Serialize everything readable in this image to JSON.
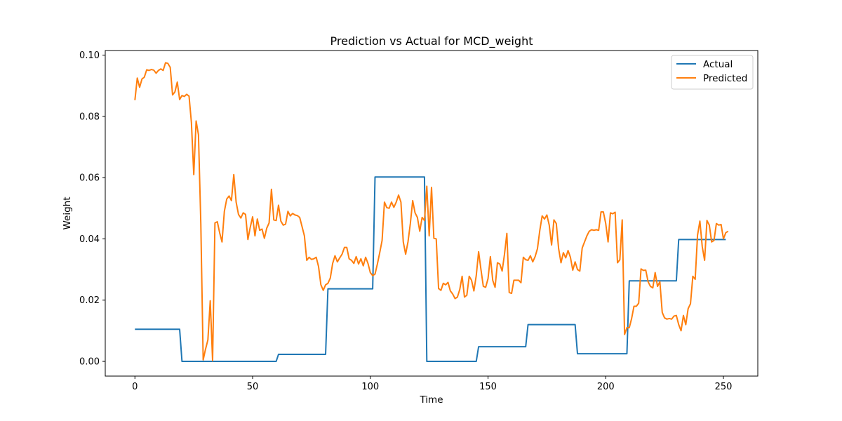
{
  "chart_data": {
    "type": "line",
    "title": "Prediction vs Actual for MCD_weight",
    "xlabel": "Time",
    "ylabel": "Weight",
    "xlim": [
      -12.6,
      264.6
    ],
    "ylim": [
      -0.0048,
      0.1015
    ],
    "xticks": [
      0,
      50,
      100,
      150,
      200,
      250
    ],
    "yticks": [
      0.0,
      0.02,
      0.04,
      0.06,
      0.08,
      0.1
    ],
    "ytick_labels": [
      "0.00",
      "0.02",
      "0.04",
      "0.06",
      "0.08",
      "0.10"
    ],
    "grid": false,
    "legend_position": "top-right",
    "series": [
      {
        "name": "Actual",
        "color": "#1f77b4",
        "step_points": [
          [
            0,
            0.0105
          ],
          [
            19,
            0.0105
          ],
          [
            20,
            0.0
          ],
          [
            60,
            0.0
          ],
          [
            61,
            0.0023
          ],
          [
            81,
            0.0023
          ],
          [
            82,
            0.0237
          ],
          [
            101,
            0.0237
          ],
          [
            102,
            0.0602
          ],
          [
            123,
            0.0602
          ],
          [
            124,
            0.0
          ],
          [
            145,
            0.0
          ],
          [
            146,
            0.0048
          ],
          [
            166,
            0.0048
          ],
          [
            167,
            0.012
          ],
          [
            187,
            0.012
          ],
          [
            188,
            0.0025
          ],
          [
            209,
            0.0025
          ],
          [
            210,
            0.0263
          ],
          [
            230,
            0.0263
          ],
          [
            231,
            0.0398
          ],
          [
            251,
            0.0398
          ]
        ]
      },
      {
        "name": "Predicted",
        "color": "#ff7f0e",
        "points": [
          [
            0,
            0.0853
          ],
          [
            1,
            0.0925
          ],
          [
            2,
            0.0895
          ],
          [
            3,
            0.0922
          ],
          [
            4,
            0.0928
          ],
          [
            5,
            0.0952
          ],
          [
            6,
            0.095
          ],
          [
            7,
            0.0953
          ],
          [
            8,
            0.0951
          ],
          [
            9,
            0.0941
          ],
          [
            10,
            0.095
          ],
          [
            11,
            0.0955
          ],
          [
            12,
            0.095
          ],
          [
            13,
            0.0975
          ],
          [
            14,
            0.0973
          ],
          [
            15,
            0.096
          ],
          [
            16,
            0.087
          ],
          [
            17,
            0.088
          ],
          [
            18,
            0.0912
          ],
          [
            19,
            0.0855
          ],
          [
            20,
            0.0868
          ],
          [
            21,
            0.0865
          ],
          [
            22,
            0.0872
          ],
          [
            23,
            0.0866
          ],
          [
            24,
            0.078
          ],
          [
            25,
            0.061
          ],
          [
            26,
            0.0785
          ],
          [
            27,
            0.074
          ],
          [
            28,
            0.045
          ],
          [
            29,
            0.0005
          ],
          [
            30,
            0.004
          ],
          [
            31,
            0.007
          ],
          [
            32,
            0.0198
          ],
          [
            33,
            0.0002
          ],
          [
            34,
            0.0452
          ],
          [
            35,
            0.0456
          ],
          [
            36,
            0.042
          ],
          [
            37,
            0.039
          ],
          [
            38,
            0.049
          ],
          [
            39,
            0.053
          ],
          [
            40,
            0.054
          ],
          [
            41,
            0.0525
          ],
          [
            42,
            0.061
          ],
          [
            43,
            0.052
          ],
          [
            44,
            0.048
          ],
          [
            45,
            0.0468
          ],
          [
            46,
            0.0485
          ],
          [
            47,
            0.048
          ],
          [
            48,
            0.0398
          ],
          [
            49,
            0.0438
          ],
          [
            50,
            0.0472
          ],
          [
            51,
            0.041
          ],
          [
            52,
            0.0465
          ],
          [
            53,
            0.0428
          ],
          [
            54,
            0.0432
          ],
          [
            55,
            0.0402
          ],
          [
            56,
            0.0435
          ],
          [
            57,
            0.0452
          ],
          [
            58,
            0.0562
          ],
          [
            59,
            0.0462
          ],
          [
            60,
            0.046
          ],
          [
            61,
            0.051
          ],
          [
            62,
            0.0458
          ],
          [
            63,
            0.0445
          ],
          [
            64,
            0.0448
          ],
          [
            65,
            0.049
          ],
          [
            66,
            0.0475
          ],
          [
            67,
            0.0483
          ],
          [
            68,
            0.0478
          ],
          [
            69,
            0.0476
          ],
          [
            70,
            0.047
          ],
          [
            71,
            0.044
          ],
          [
            72,
            0.041
          ],
          [
            73,
            0.033
          ],
          [
            74,
            0.034
          ],
          [
            75,
            0.0333
          ],
          [
            76,
            0.0335
          ],
          [
            77,
            0.034
          ],
          [
            78,
            0.031
          ],
          [
            79,
            0.025
          ],
          [
            80,
            0.0232
          ],
          [
            81,
            0.025
          ],
          [
            82,
            0.0255
          ],
          [
            83,
            0.0272
          ],
          [
            84,
            0.032
          ],
          [
            85,
            0.0345
          ],
          [
            86,
            0.0325
          ],
          [
            87,
            0.0338
          ],
          [
            88,
            0.035
          ],
          [
            89,
            0.0372
          ],
          [
            90,
            0.0372
          ],
          [
            91,
            0.0335
          ],
          [
            92,
            0.033
          ],
          [
            93,
            0.032
          ],
          [
            94,
            0.0342
          ],
          [
            95,
            0.0318
          ],
          [
            96,
            0.0335
          ],
          [
            97,
            0.0312
          ],
          [
            98,
            0.034
          ],
          [
            99,
            0.032
          ],
          [
            100,
            0.029
          ],
          [
            101,
            0.028
          ],
          [
            102,
            0.0285
          ],
          [
            103,
            0.0318
          ],
          [
            104,
            0.0355
          ],
          [
            105,
            0.0395
          ],
          [
            106,
            0.052
          ],
          [
            107,
            0.0502
          ],
          [
            108,
            0.05
          ],
          [
            109,
            0.052
          ],
          [
            110,
            0.0503
          ],
          [
            111,
            0.052
          ],
          [
            112,
            0.0543
          ],
          [
            113,
            0.052
          ],
          [
            114,
            0.039
          ],
          [
            115,
            0.035
          ],
          [
            116,
            0.039
          ],
          [
            117,
            0.045
          ],
          [
            118,
            0.0525
          ],
          [
            119,
            0.0485
          ],
          [
            120,
            0.047
          ],
          [
            121,
            0.0425
          ],
          [
            122,
            0.047
          ],
          [
            123,
            0.046
          ],
          [
            124,
            0.0572
          ],
          [
            125,
            0.041
          ],
          [
            126,
            0.0568
          ],
          [
            127,
            0.0402
          ],
          [
            128,
            0.04
          ],
          [
            129,
            0.0238
          ],
          [
            130,
            0.0232
          ],
          [
            131,
            0.0255
          ],
          [
            132,
            0.025
          ],
          [
            133,
            0.0258
          ],
          [
            134,
            0.023
          ],
          [
            135,
            0.022
          ],
          [
            136,
            0.0205
          ],
          [
            137,
            0.021
          ],
          [
            138,
            0.0235
          ],
          [
            139,
            0.0278
          ],
          [
            140,
            0.021
          ],
          [
            141,
            0.0216
          ],
          [
            142,
            0.0278
          ],
          [
            143,
            0.0265
          ],
          [
            144,
            0.023
          ],
          [
            145,
            0.028
          ],
          [
            146,
            0.0358
          ],
          [
            147,
            0.03
          ],
          [
            148,
            0.0245
          ],
          [
            149,
            0.0242
          ],
          [
            150,
            0.027
          ],
          [
            151,
            0.0342
          ],
          [
            152,
            0.0265
          ],
          [
            153,
            0.0242
          ],
          [
            154,
            0.0322
          ],
          [
            155,
            0.0318
          ],
          [
            156,
            0.0295
          ],
          [
            157,
            0.035
          ],
          [
            158,
            0.0418
          ],
          [
            159,
            0.0225
          ],
          [
            160,
            0.0222
          ],
          [
            161,
            0.0265
          ],
          [
            162,
            0.0265
          ],
          [
            163,
            0.0265
          ],
          [
            164,
            0.0257
          ],
          [
            165,
            0.034
          ],
          [
            166,
            0.0332
          ],
          [
            167,
            0.033
          ],
          [
            168,
            0.0345
          ],
          [
            169,
            0.0325
          ],
          [
            170,
            0.0342
          ],
          [
            171,
            0.0368
          ],
          [
            172,
            0.0428
          ],
          [
            173,
            0.0475
          ],
          [
            174,
            0.0465
          ],
          [
            175,
            0.0478
          ],
          [
            176,
            0.0445
          ],
          [
            177,
            0.038
          ],
          [
            178,
            0.0462
          ],
          [
            179,
            0.045
          ],
          [
            180,
            0.0368
          ],
          [
            181,
            0.0322
          ],
          [
            182,
            0.0355
          ],
          [
            183,
            0.0338
          ],
          [
            184,
            0.0362
          ],
          [
            185,
            0.034
          ],
          [
            186,
            0.0298
          ],
          [
            187,
            0.0325
          ],
          [
            188,
            0.03
          ],
          [
            189,
            0.0295
          ],
          [
            190,
            0.037
          ],
          [
            191,
            0.039
          ],
          [
            192,
            0.041
          ],
          [
            193,
            0.0425
          ],
          [
            194,
            0.043
          ],
          [
            195,
            0.0428
          ],
          [
            196,
            0.043
          ],
          [
            197,
            0.0428
          ],
          [
            198,
            0.0488
          ],
          [
            199,
            0.0488
          ],
          [
            200,
            0.045
          ],
          [
            201,
            0.039
          ],
          [
            202,
            0.0485
          ],
          [
            203,
            0.0482
          ],
          [
            204,
            0.0487
          ],
          [
            205,
            0.0322
          ],
          [
            206,
            0.0332
          ],
          [
            207,
            0.0462
          ],
          [
            208,
            0.0088
          ],
          [
            209,
            0.011
          ],
          [
            210,
            0.011
          ],
          [
            211,
            0.014
          ],
          [
            212,
            0.018
          ],
          [
            213,
            0.018
          ],
          [
            214,
            0.019
          ],
          [
            215,
            0.0302
          ],
          [
            216,
            0.0297
          ],
          [
            217,
            0.0298
          ],
          [
            218,
            0.026
          ],
          [
            219,
            0.0245
          ],
          [
            220,
            0.024
          ],
          [
            221,
            0.029
          ],
          [
            222,
            0.0245
          ],
          [
            223,
            0.026
          ],
          [
            224,
            0.016
          ],
          [
            225,
            0.0142
          ],
          [
            226,
            0.0138
          ],
          [
            227,
            0.014
          ],
          [
            228,
            0.0138
          ],
          [
            229,
            0.0148
          ],
          [
            230,
            0.015
          ],
          [
            231,
            0.012
          ],
          [
            232,
            0.01
          ],
          [
            233,
            0.015
          ],
          [
            234,
            0.012
          ],
          [
            235,
            0.0172
          ],
          [
            236,
            0.0188
          ],
          [
            237,
            0.0278
          ],
          [
            238,
            0.0268
          ],
          [
            239,
            0.0412
          ],
          [
            240,
            0.0458
          ],
          [
            241,
            0.0375
          ],
          [
            242,
            0.033
          ],
          [
            243,
            0.046
          ],
          [
            244,
            0.0445
          ],
          [
            245,
            0.039
          ],
          [
            246,
            0.0395
          ],
          [
            247,
            0.045
          ],
          [
            248,
            0.0445
          ],
          [
            249,
            0.0447
          ],
          [
            250,
            0.04
          ],
          [
            251,
            0.042
          ],
          [
            252,
            0.0425
          ]
        ]
      }
    ]
  }
}
